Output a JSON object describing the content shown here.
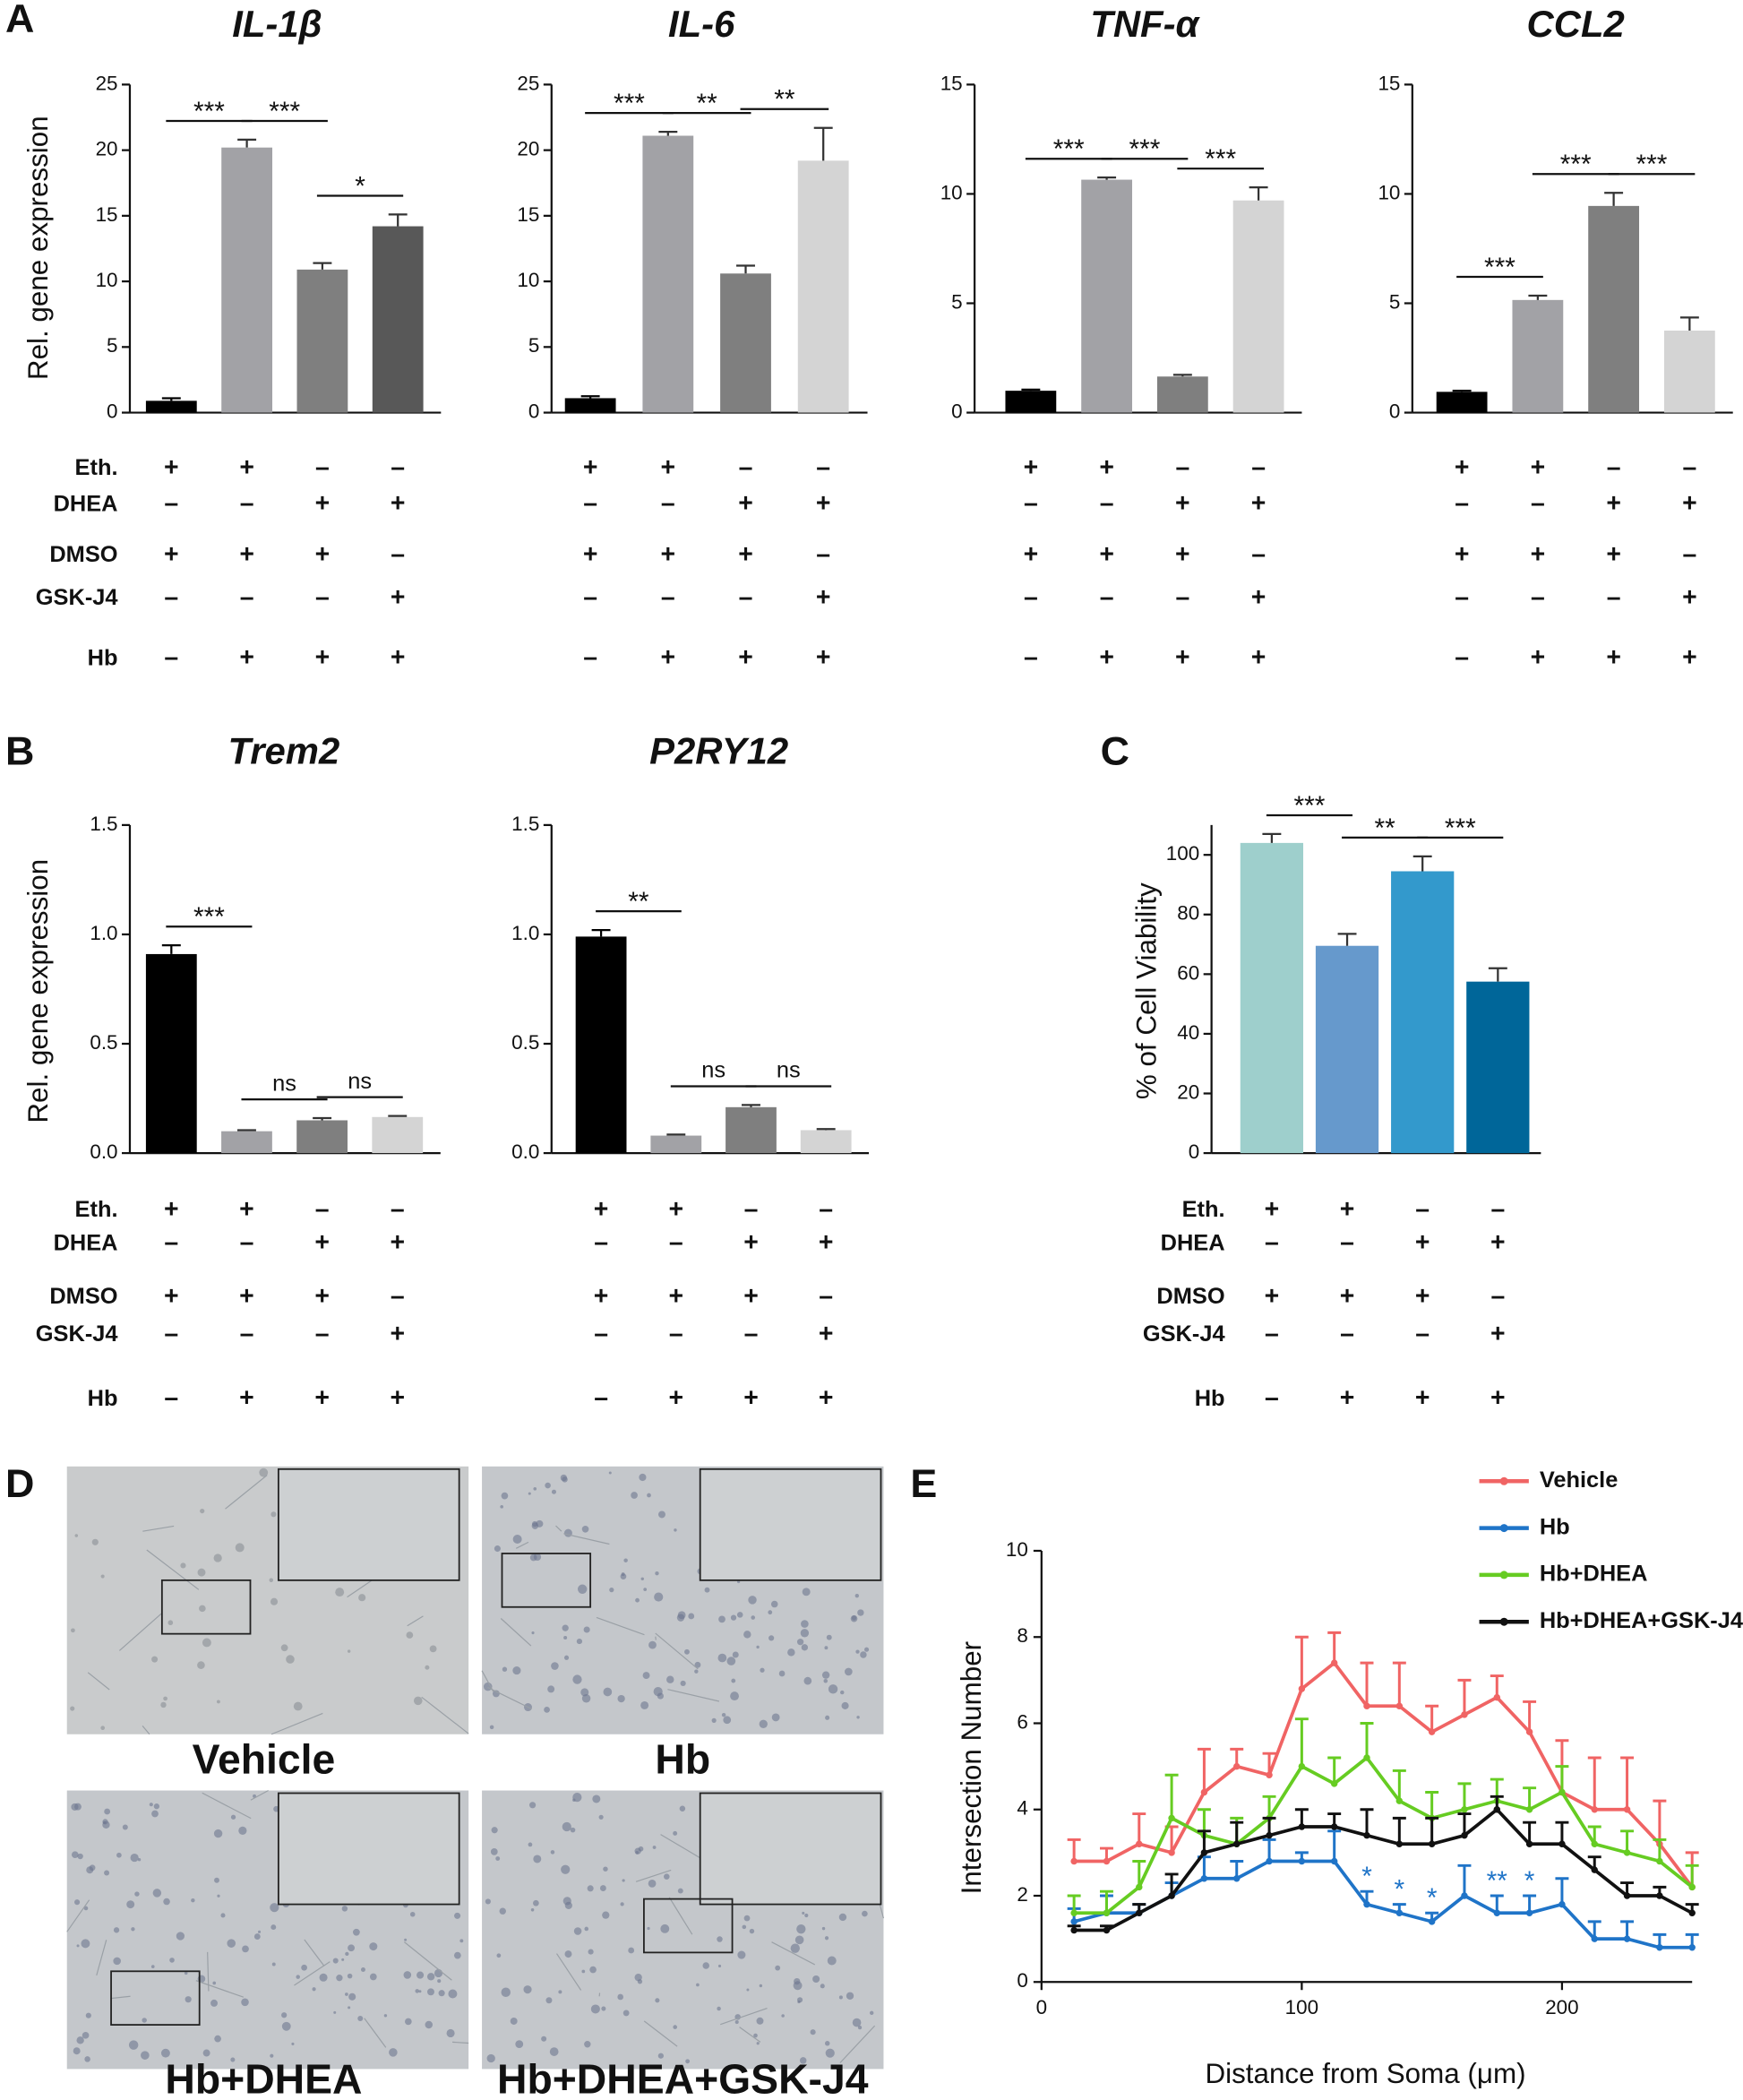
{
  "panel_labels": [
    "A",
    "B",
    "C",
    "D",
    "E"
  ],
  "treatments": {
    "rows": [
      {
        "label": "Eth.",
        "signs": [
          "+",
          "+",
          "–",
          "–"
        ]
      },
      {
        "label": "DHEA",
        "signs": [
          "–",
          "–",
          "+",
          "+"
        ]
      },
      {
        "label": "DMSO",
        "signs": [
          "+",
          "+",
          "+",
          "–"
        ]
      },
      {
        "label": "GSK-J4",
        "signs": [
          "–",
          "–",
          "–",
          "+"
        ]
      },
      {
        "label": "Hb",
        "signs": [
          "–",
          "+",
          "+",
          "+"
        ]
      }
    ]
  },
  "micrographs": [
    {
      "label": "Vehicle"
    },
    {
      "label": "Hb"
    },
    {
      "label": "Hb+DHEA"
    },
    {
      "label": "Hb+DHEA+GSK-J4"
    }
  ],
  "chart_data": [
    {
      "type": "bar",
      "title": "IL-1β",
      "y_label": "Rel. gene expression",
      "values": [
        0.9,
        20.2,
        10.9,
        14.2
      ],
      "errors": [
        0.2,
        0.6,
        0.5,
        0.9
      ],
      "colors": [
        "#000000",
        "#a2a2a6",
        "#7f7f7f",
        "#585858"
      ],
      "ylim": [
        0,
        25
      ],
      "yticks": [
        0,
        5,
        10,
        15,
        20,
        25
      ],
      "significance": [
        "***",
        "***",
        "*"
      ]
    },
    {
      "type": "bar",
      "title": "IL-6",
      "values": [
        1.1,
        21.1,
        10.6,
        19.2
      ],
      "errors": [
        0.15,
        0.3,
        0.6,
        2.5
      ],
      "colors": [
        "#000000",
        "#a2a2a6",
        "#7f7f7f",
        "#d4d4d4"
      ],
      "ylim": [
        0,
        25
      ],
      "yticks": [
        0,
        5,
        10,
        15,
        20,
        25
      ],
      "significance": [
        "***",
        "**",
        "**"
      ]
    },
    {
      "type": "bar",
      "title": "TNF-α",
      "values": [
        1.0,
        10.65,
        1.65,
        9.7
      ],
      "errors": [
        0.05,
        0.1,
        0.08,
        0.6
      ],
      "colors": [
        "#000000",
        "#a2a2a6",
        "#7f7f7f",
        "#d4d4d4"
      ],
      "ylim": [
        0,
        15
      ],
      "yticks": [
        0,
        5,
        10,
        15
      ],
      "significance": [
        "***",
        "***",
        "***"
      ]
    },
    {
      "type": "bar",
      "title": "CCL2",
      "values": [
        0.95,
        5.15,
        9.45,
        3.75
      ],
      "errors": [
        0.05,
        0.2,
        0.6,
        0.6
      ],
      "colors": [
        "#000000",
        "#a2a2a6",
        "#7f7f7f",
        "#d4d4d4"
      ],
      "ylim": [
        0,
        15
      ],
      "yticks": [
        0,
        5,
        10,
        15
      ],
      "significance": [
        "***",
        "***",
        "***"
      ]
    },
    {
      "type": "bar",
      "title": "Trem2",
      "y_label": "Rel. gene expression",
      "values": [
        0.91,
        0.1,
        0.15,
        0.165
      ],
      "errors": [
        0.04,
        0.005,
        0.01,
        0.005
      ],
      "colors": [
        "#000000",
        "#a2a2a6",
        "#7f7f7f",
        "#d4d4d4"
      ],
      "ylim": [
        0,
        1.5
      ],
      "yticks": [
        {
          "value": 0,
          "label": "0.0"
        },
        0.5,
        {
          "value": 1,
          "label": "1.0"
        },
        1.5
      ],
      "significance": [
        "***",
        "ns",
        "ns"
      ]
    },
    {
      "type": "bar",
      "title": "P2RY12",
      "values": [
        0.99,
        0.08,
        0.21,
        0.105
      ],
      "errors": [
        0.03,
        0.005,
        0.01,
        0.005
      ],
      "colors": [
        "#000000",
        "#a2a2a6",
        "#7f7f7f",
        "#d4d4d4"
      ],
      "ylim": [
        0,
        1.5
      ],
      "yticks": [
        {
          "value": 0,
          "label": "0.0"
        },
        0.5,
        {
          "value": 1,
          "label": "1.0"
        },
        1.5
      ],
      "significance": [
        "**",
        "ns",
        "ns"
      ]
    },
    {
      "type": "bar",
      "y_label": "% of Cell Viability",
      "values": [
        104,
        69.5,
        94.5,
        57.5
      ],
      "errors": [
        3,
        4,
        5,
        4.5
      ],
      "colors": [
        "#9ecfcc",
        "#6699cc",
        "#3399cc",
        "#006699"
      ],
      "ylim": [
        0,
        110
      ],
      "yticks": [
        0,
        20,
        40,
        60,
        80,
        100
      ],
      "significance": [
        "***",
        "**",
        "***"
      ]
    },
    {
      "type": "line",
      "x_label": "Distance from Soma (μm)",
      "y_label": "Intersection Number",
      "x": [
        12.5,
        25,
        37.5,
        50,
        62.5,
        75,
        87.5,
        100,
        112.5,
        125,
        137.5,
        150,
        162.5,
        175,
        187.5,
        200,
        212.5,
        225,
        237.5,
        250
      ],
      "xlim": [
        0,
        250
      ],
      "xticks": [
        0,
        100,
        200
      ],
      "ylim": [
        0,
        10
      ],
      "yticks": [
        0,
        2,
        4,
        6,
        8,
        10
      ],
      "series": [
        {
          "name": "Vehicle",
          "color": "#f06464",
          "values": [
            2.8,
            2.8,
            3.2,
            3.0,
            4.4,
            5.0,
            4.8,
            6.8,
            7.4,
            6.4,
            6.4,
            5.8,
            6.2,
            6.6,
            5.8,
            4.4,
            4.0,
            4.0,
            3.2,
            2.2
          ],
          "errors": [
            0.5,
            0.3,
            0.7,
            0.6,
            1.0,
            0.4,
            0.5,
            1.2,
            0.7,
            1.0,
            1.0,
            0.6,
            0.8,
            0.5,
            0.7,
            1.2,
            1.2,
            1.2,
            1.0,
            0.8
          ]
        },
        {
          "name": "Hb",
          "color": "#1f74c8",
          "values": [
            1.4,
            1.6,
            1.6,
            2.0,
            2.4,
            2.4,
            2.8,
            2.8,
            2.8,
            1.8,
            1.6,
            1.4,
            2.0,
            1.6,
            1.6,
            1.8,
            1.0,
            1.0,
            0.8,
            0.8
          ],
          "errors": [
            0.3,
            0.4,
            0.2,
            0.3,
            0.5,
            0.4,
            0.5,
            0.2,
            0.7,
            0.3,
            0.2,
            0.2,
            0.7,
            0.4,
            0.4,
            0.6,
            0.4,
            0.4,
            0.3,
            0.3
          ],
          "annotations": [
            null,
            null,
            null,
            null,
            null,
            null,
            null,
            null,
            null,
            "*",
            "*",
            "*",
            null,
            "**",
            "*",
            null,
            null,
            null,
            null,
            null
          ]
        },
        {
          "name": "Hb+DHEA",
          "color": "#66cc22",
          "values": [
            1.6,
            1.6,
            2.2,
            3.8,
            3.4,
            3.2,
            3.8,
            5.0,
            4.6,
            5.2,
            4.2,
            3.8,
            4.0,
            4.2,
            4.0,
            4.4,
            3.2,
            3.0,
            2.8,
            2.2
          ],
          "errors": [
            0.4,
            0.5,
            0.6,
            1.0,
            0.6,
            0.6,
            0.5,
            1.1,
            0.6,
            0.8,
            0.7,
            0.6,
            0.6,
            0.5,
            0.5,
            0.6,
            0.4,
            0.5,
            0.5,
            0.5
          ]
        },
        {
          "name": "Hb+DHEA+GSK-J4",
          "color": "#111111",
          "values": [
            1.2,
            1.2,
            1.6,
            2.0,
            3.0,
            3.2,
            3.4,
            3.6,
            3.6,
            3.4,
            3.2,
            3.2,
            3.4,
            4.0,
            3.2,
            3.2,
            2.6,
            2.0,
            2.0,
            1.6
          ],
          "errors": [
            0.1,
            0.1,
            0.2,
            0.5,
            0.5,
            0.5,
            0.4,
            0.4,
            0.3,
            0.6,
            0.6,
            0.6,
            0.5,
            0.3,
            0.5,
            0.5,
            0.3,
            0.3,
            0.2,
            0.2
          ]
        }
      ]
    }
  ]
}
